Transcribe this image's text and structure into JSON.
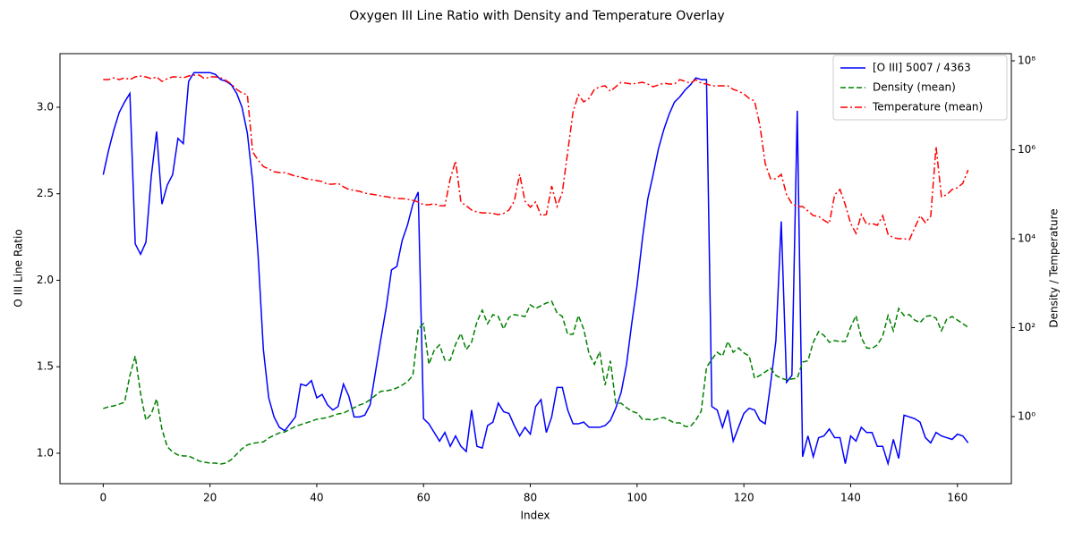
{
  "chart_data": {
    "type": "line",
    "title": "Oxygen III Line Ratio with Density and Temperature Overlay",
    "xlabel": "Index",
    "ylabel": "O III Line Ratio",
    "ylabel_color": "#0000ff",
    "y2label": "Density / Temperature",
    "y2scale": "log",
    "legend": "upper right",
    "x": [
      0,
      1,
      2,
      3,
      4,
      5,
      6,
      7,
      8,
      9,
      10,
      11,
      12,
      13,
      14,
      15,
      16,
      17,
      18,
      19,
      20,
      21,
      22,
      23,
      24,
      25,
      26,
      27,
      28,
      29,
      30,
      31,
      32,
      33,
      34,
      35,
      36,
      37,
      38,
      39,
      40,
      41,
      42,
      43,
      44,
      45,
      46,
      47,
      48,
      49,
      50,
      51,
      52,
      53,
      54,
      55,
      56,
      57,
      58,
      59,
      60,
      61,
      62,
      63,
      64,
      65,
      66,
      67,
      68,
      69,
      70,
      71,
      72,
      73,
      74,
      75,
      76,
      77,
      78,
      79,
      80,
      81,
      82,
      83,
      84,
      85,
      86,
      87,
      88,
      89,
      90,
      91,
      92,
      93,
      94,
      95,
      96,
      97,
      98,
      99,
      100,
      101,
      102,
      103,
      104,
      105,
      106,
      107,
      108,
      109,
      110,
      111,
      112,
      113,
      114,
      115,
      116,
      117,
      118,
      119,
      120,
      121,
      122,
      123,
      124,
      125,
      126,
      127,
      128,
      129,
      130,
      131,
      132,
      133,
      134,
      135,
      136,
      137,
      138,
      139,
      140,
      141,
      142,
      143,
      144,
      145,
      146,
      147,
      148,
      149,
      150,
      151,
      152,
      153,
      154,
      155,
      156,
      157,
      158,
      159,
      160,
      161,
      162
    ],
    "xlim": [
      -8.1,
      170.1
    ],
    "xticks": [
      0,
      20,
      40,
      60,
      80,
      100,
      120,
      140,
      160
    ],
    "ylim": [
      0.824,
      3.31
    ],
    "yticks": [
      {
        "value": 1,
        "label": "1.0"
      },
      1.5,
      {
        "value": 2,
        "label": "2.0"
      },
      2.5,
      {
        "value": 3,
        "label": "3.0"
      }
    ],
    "y2lim": [
      0.031,
      145000000
    ],
    "y2ticks": [
      {
        "value": 1,
        "label": "10⁰"
      },
      {
        "value": 100,
        "label": "10²"
      },
      {
        "value": 10000,
        "label": "10⁴"
      },
      {
        "value": 1000000,
        "label": "10⁶"
      },
      {
        "value": 100000000,
        "label": "10⁸"
      }
    ],
    "series": [
      {
        "name": "[O III] 5007 / 4363",
        "color": "#0000ff",
        "linestyle": "solid",
        "axis": "y",
        "values": [
          2.61,
          2.75,
          2.87,
          2.97,
          3.03,
          3.08,
          2.21,
          2.15,
          2.22,
          2.6,
          2.86,
          2.44,
          2.55,
          2.61,
          2.82,
          2.79,
          3.15,
          3.2,
          3.2,
          3.2,
          3.2,
          3.19,
          3.16,
          3.15,
          3.13,
          3.08,
          3.0,
          2.85,
          2.57,
          2.15,
          1.6,
          1.32,
          1.21,
          1.15,
          1.13,
          1.17,
          1.21,
          1.4,
          1.39,
          1.42,
          1.32,
          1.34,
          1.28,
          1.25,
          1.27,
          1.4,
          1.33,
          1.21,
          1.21,
          1.22,
          1.28,
          1.47,
          1.66,
          1.84,
          2.06,
          2.08,
          2.23,
          2.32,
          2.44,
          2.51,
          1.2,
          1.17,
          1.12,
          1.07,
          1.12,
          1.04,
          1.1,
          1.04,
          1.01,
          1.25,
          1.04,
          1.03,
          1.16,
          1.18,
          1.29,
          1.24,
          1.23,
          1.16,
          1.1,
          1.15,
          1.11,
          1.27,
          1.31,
          1.12,
          1.21,
          1.38,
          1.38,
          1.25,
          1.17,
          1.17,
          1.18,
          1.15,
          1.15,
          1.15,
          1.16,
          1.19,
          1.26,
          1.35,
          1.51,
          1.75,
          1.97,
          2.24,
          2.47,
          2.61,
          2.76,
          2.87,
          2.96,
          3.03,
          3.06,
          3.1,
          3.13,
          3.17,
          3.16,
          3.16,
          1.27,
          1.25,
          1.15,
          1.25,
          1.07,
          1.15,
          1.23,
          1.26,
          1.25,
          1.19,
          1.17,
          1.4,
          1.65,
          2.34,
          1.41,
          1.45,
          2.98,
          0.98,
          1.1,
          0.98,
          1.09,
          1.1,
          1.14,
          1.09,
          1.09,
          0.94,
          1.1,
          1.07,
          1.15,
          1.12,
          1.12,
          1.04,
          1.04,
          0.94,
          1.08,
          0.97,
          1.22,
          1.21,
          1.2,
          1.18,
          1.09,
          1.06,
          1.12,
          1.1,
          1.09,
          1.08,
          1.11,
          1.1,
          1.06
        ]
      },
      {
        "name": "Density (mean)",
        "color": "#008000",
        "linestyle": "dashed",
        "axis": "y2",
        "values": [
          1.52,
          1.66,
          1.74,
          1.9,
          2.1,
          8.4,
          23,
          3.3,
          0.83,
          1.15,
          2.5,
          0.52,
          0.21,
          0.16,
          0.137,
          0.13,
          0.13,
          0.114,
          0.1,
          0.094,
          0.09,
          0.09,
          0.086,
          0.09,
          0.108,
          0.143,
          0.19,
          0.23,
          0.25,
          0.26,
          0.27,
          0.33,
          0.38,
          0.43,
          0.45,
          0.52,
          0.6,
          0.66,
          0.72,
          0.79,
          0.87,
          0.91,
          0.95,
          1.05,
          1.15,
          1.2,
          1.38,
          1.59,
          1.82,
          2.0,
          2.4,
          3.0,
          3.7,
          3.8,
          4.0,
          4.4,
          5.1,
          6.1,
          8.4,
          93,
          123,
          15,
          31,
          41,
          18.5,
          18.5,
          42,
          74,
          32,
          47,
          135,
          247,
          123,
          196,
          178,
          93,
          170,
          196,
          187,
          178,
          326,
          270,
          311,
          357,
          392,
          215,
          178,
          71,
          71,
          187,
          93,
          26,
          15,
          29,
          5.1,
          18,
          2.0,
          2.0,
          1.59,
          1.32,
          1.2,
          0.87,
          0.87,
          0.83,
          0.91,
          0.95,
          0.83,
          0.72,
          0.72,
          0.6,
          0.6,
          0.83,
          1.32,
          12.8,
          19.3,
          28,
          23,
          49,
          28,
          35,
          27,
          23,
          7.3,
          8.4,
          10.1,
          12.2,
          8.4,
          7.3,
          6.7,
          7.0,
          7.3,
          16.8,
          18,
          47,
          81,
          67,
          47,
          51,
          49,
          49,
          102,
          187,
          59,
          35,
          34,
          41,
          64,
          187,
          85,
          270,
          187,
          196,
          148,
          129,
          178,
          187,
          163,
          85,
          155,
          178,
          148,
          123,
          102
        ]
      },
      {
        "name": "Temperature (mean)",
        "color": "#ff0000",
        "linestyle": "dashdot",
        "axis": "y2",
        "values": [
          37800000,
          37800000,
          41500000,
          37800000,
          41500000,
          37800000,
          43500000,
          45500000,
          43500000,
          39600000,
          43500000,
          34500000,
          39600000,
          43500000,
          43500000,
          41500000,
          45500000,
          47700000,
          47700000,
          39600000,
          43500000,
          43500000,
          41500000,
          36100000,
          30000000,
          22800000,
          18900000,
          17200000,
          890000,
          590000,
          420000,
          370000,
          320000,
          307000,
          307000,
          280000,
          255000,
          244000,
          222000,
          212000,
          203000,
          193000,
          168000,
          168000,
          176000,
          147000,
          128000,
          122000,
          116000,
          106000,
          101000,
          97000,
          92000,
          88000,
          84000,
          80000,
          80000,
          77000,
          73000,
          67000,
          58000,
          58000,
          61000,
          55000,
          55000,
          222000,
          560000,
          67000,
          55000,
          44000,
          40000,
          38000,
          38000,
          37000,
          35000,
          37000,
          44000,
          70000,
          280000,
          70000,
          51000,
          67000,
          33000,
          35000,
          153000,
          53000,
          111000,
          890000,
          7100000,
          17200000,
          11900000,
          14300000,
          22800000,
          26100000,
          27400000,
          20700000,
          26100000,
          32900000,
          31400000,
          30000000,
          31400000,
          32900000,
          30000000,
          26100000,
          28700000,
          31400000,
          30000000,
          30000000,
          37800000,
          34500000,
          31400000,
          37800000,
          31400000,
          30000000,
          27400000,
          27400000,
          27400000,
          27400000,
          22800000,
          20700000,
          18000000,
          14300000,
          12500000,
          3570000,
          490000,
          222000,
          222000,
          280000,
          97000,
          61000,
          53000,
          53000,
          42000,
          33000,
          32000,
          26000,
          22000,
          97000,
          128000,
          58000,
          22000,
          13200,
          35000,
          21000,
          22000,
          20000,
          33000,
          12600,
          10500,
          10000,
          10000,
          9500,
          17400,
          33000,
          23000,
          32000,
          1180000,
          88000,
          97000,
          128000,
          140000,
          176000,
          350000
        ]
      }
    ]
  }
}
